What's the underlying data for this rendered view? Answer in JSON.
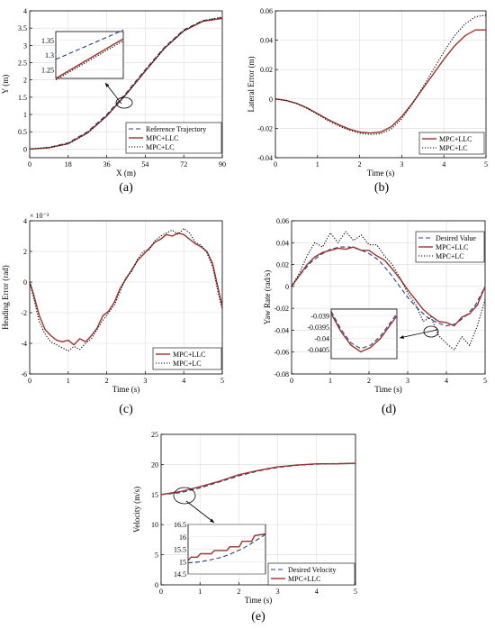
{
  "colors": {
    "reference": "#1f3f8f",
    "mpc_llc": "#a0302a",
    "mpc_lc": "#000000",
    "axis": "#000000"
  },
  "chart_data": [
    {
      "id": "a",
      "panel_label": "(a)",
      "type": "line",
      "xlabel": "X (m)",
      "ylabel": "Y (m)",
      "xlim": [
        0,
        90
      ],
      "ylim": [
        -0.25,
        4
      ],
      "xticks": [
        0,
        18,
        36,
        54,
        72,
        90
      ],
      "yticks": [
        0,
        0.5,
        1,
        1.5,
        2,
        2.5,
        3,
        3.5,
        4
      ],
      "ytick_labels": [
        "0",
        "0.5",
        "1",
        "1.5",
        "2",
        "2.5",
        "3",
        "3.5",
        "4"
      ],
      "grid": true,
      "legend_position": "bottom-right",
      "series": [
        {
          "name": "Reference Trajectory",
          "style": "dashed",
          "color": "#1f3f8f",
          "x": [
            0,
            9,
            18,
            27,
            36,
            45,
            54,
            63,
            72,
            81,
            90
          ],
          "y": [
            0,
            0.05,
            0.18,
            0.5,
            1.0,
            1.62,
            2.3,
            2.95,
            3.45,
            3.72,
            3.8
          ]
        },
        {
          "name": "MPC+LLC",
          "style": "solid",
          "color": "#a0302a",
          "x": [
            0,
            9,
            18,
            27,
            36,
            45,
            54,
            63,
            72,
            81,
            90
          ],
          "y": [
            0,
            0.04,
            0.16,
            0.47,
            0.96,
            1.58,
            2.26,
            2.92,
            3.42,
            3.7,
            3.78
          ]
        },
        {
          "name": "MPC+LC",
          "style": "dotted",
          "color": "#000000",
          "x": [
            0,
            9,
            18,
            27,
            36,
            45,
            54,
            63,
            72,
            81,
            90
          ],
          "y": [
            0,
            0.04,
            0.15,
            0.46,
            0.95,
            1.57,
            2.25,
            2.91,
            3.42,
            3.71,
            3.82
          ]
        }
      ],
      "inset": {
        "yticks": [
          1.25,
          1.3,
          1.35
        ],
        "ytick_labels": [
          "1.25",
          "1.3",
          "1.35"
        ],
        "ylim": [
          1.22,
          1.38
        ],
        "series": [
          {
            "style": "dashed",
            "color": "#1f3f8f",
            "x": [
              0,
              1
            ],
            "y": [
              1.285,
              1.385
            ]
          },
          {
            "style": "solid",
            "color": "#a0302a",
            "x": [
              0,
              1
            ],
            "y": [
              1.22,
              1.355
            ]
          },
          {
            "style": "dotted",
            "color": "#000000",
            "x": [
              0,
              1
            ],
            "y": [
              1.215,
              1.348
            ]
          }
        ]
      }
    },
    {
      "id": "b",
      "panel_label": "(b)",
      "type": "line",
      "xlabel": "Time (s)",
      "ylabel": "Lateral Error (m)",
      "xlim": [
        0,
        5
      ],
      "ylim": [
        -0.04,
        0.06
      ],
      "xticks": [
        0,
        1,
        2,
        3,
        4,
        5
      ],
      "yticks": [
        -0.04,
        -0.02,
        0,
        0.02,
        0.04,
        0.06
      ],
      "ytick_labels": [
        "-0.04",
        "-0.02",
        "0",
        "0.02",
        "0.04",
        "0.06"
      ],
      "grid": true,
      "legend_position": "bottom-right",
      "series": [
        {
          "name": "MPC+LLC",
          "style": "solid",
          "color": "#a0302a",
          "x": [
            0,
            0.25,
            0.5,
            0.75,
            1,
            1.25,
            1.5,
            1.75,
            2,
            2.25,
            2.5,
            2.75,
            3,
            3.25,
            3.5,
            3.75,
            4,
            4.25,
            4.5,
            4.75,
            5
          ],
          "y": [
            0,
            -0.001,
            -0.003,
            -0.006,
            -0.01,
            -0.014,
            -0.0175,
            -0.0205,
            -0.0225,
            -0.0232,
            -0.0225,
            -0.019,
            -0.012,
            -0.003,
            0.007,
            0.017,
            0.027,
            0.036,
            0.043,
            0.047,
            0.047
          ]
        },
        {
          "name": "MPC+LC",
          "style": "dotted",
          "color": "#000000",
          "x": [
            0,
            0.25,
            0.5,
            0.75,
            1,
            1.25,
            1.5,
            1.75,
            2,
            2.25,
            2.5,
            2.75,
            3,
            3.25,
            3.5,
            3.75,
            4,
            4.25,
            4.5,
            4.75,
            5
          ],
          "y": [
            0,
            -0.001,
            -0.003,
            -0.0065,
            -0.0105,
            -0.0148,
            -0.0183,
            -0.0213,
            -0.0233,
            -0.0242,
            -0.0237,
            -0.0205,
            -0.0135,
            -0.0035,
            0.008,
            0.02,
            0.032,
            0.043,
            0.051,
            0.056,
            0.057
          ]
        }
      ]
    },
    {
      "id": "c",
      "panel_label": "(c)",
      "type": "line",
      "xlabel": "Time (s)",
      "ylabel": "Heading Error (rad)",
      "exponent_label": "× 10⁻³",
      "xlim": [
        0,
        5
      ],
      "ylim": [
        -6,
        4
      ],
      "xticks": [
        0,
        1,
        2,
        3,
        4,
        5
      ],
      "yticks": [
        -6,
        -4,
        -2,
        0,
        2,
        4
      ],
      "ytick_labels": [
        "-6",
        "-4",
        "-2",
        "0",
        "2",
        "4"
      ],
      "grid": true,
      "legend_position": "bottom-right",
      "series": [
        {
          "name": "MPC+LLC",
          "style": "solid",
          "color": "#a0302a",
          "x": [
            0,
            0.1,
            0.25,
            0.4,
            0.55,
            0.7,
            0.85,
            1,
            1.15,
            1.3,
            1.45,
            1.6,
            1.75,
            1.9,
            2.05,
            2.2,
            2.35,
            2.5,
            2.65,
            2.8,
            2.95,
            3.1,
            3.25,
            3.4,
            3.55,
            3.7,
            3.85,
            4,
            4.15,
            4.3,
            4.45,
            4.6,
            4.75,
            4.9,
            5
          ],
          "y": [
            0,
            -0.8,
            -2.2,
            -3.1,
            -3.5,
            -3.8,
            -3.9,
            -3.8,
            -4.1,
            -3.7,
            -3.9,
            -3.5,
            -3.0,
            -2.2,
            -1.9,
            -1.3,
            -0.4,
            0.2,
            0.8,
            1.4,
            1.8,
            2.2,
            2.6,
            2.8,
            3.1,
            3.0,
            3.2,
            3.1,
            2.8,
            2.5,
            2.3,
            2.0,
            1.2,
            -0.5,
            -1.6
          ]
        },
        {
          "name": "MPC+LC",
          "style": "dotted",
          "color": "#000000",
          "x": [
            0,
            0.1,
            0.25,
            0.4,
            0.55,
            0.7,
            0.85,
            1,
            1.15,
            1.3,
            1.45,
            1.6,
            1.75,
            1.9,
            2.05,
            2.2,
            2.35,
            2.5,
            2.65,
            2.8,
            2.95,
            3.1,
            3.25,
            3.4,
            3.55,
            3.7,
            3.85,
            4,
            4.15,
            4.3,
            4.45,
            4.6,
            4.75,
            4.9,
            5
          ],
          "y": [
            0,
            -1.0,
            -2.6,
            -3.4,
            -3.9,
            -4.1,
            -4.3,
            -4.5,
            -4.2,
            -4.4,
            -4.0,
            -3.7,
            -3.1,
            -2.5,
            -2.0,
            -1.5,
            -0.6,
            0.3,
            0.7,
            1.5,
            2.0,
            2.1,
            2.7,
            3.0,
            3.2,
            3.4,
            3.1,
            3.5,
            3.2,
            2.6,
            2.4,
            1.9,
            1.0,
            -0.8,
            -1.8
          ]
        }
      ]
    },
    {
      "id": "d",
      "panel_label": "(d)",
      "type": "line",
      "xlabel": "Time (s)",
      "ylabel": "Yaw Rate (rad/s)",
      "xlim": [
        0,
        5
      ],
      "ylim": [
        -0.08,
        0.06
      ],
      "xticks": [
        0,
        1,
        2,
        3,
        4,
        5
      ],
      "yticks": [
        -0.08,
        -0.06,
        -0.04,
        -0.02,
        0,
        0.02,
        0.04,
        0.06
      ],
      "ytick_labels": [
        "-0.08",
        "-0.06",
        "-0.04",
        "-0.02",
        "0",
        "0.02",
        "0.04",
        "0.06"
      ],
      "grid": true,
      "legend_position": "top-right",
      "series": [
        {
          "name": "Desired Value",
          "style": "dashed",
          "color": "#1f3f8f",
          "x": [
            0,
            0.25,
            0.5,
            0.75,
            1,
            1.25,
            1.5,
            1.75,
            2,
            2.25,
            2.5,
            2.75,
            3,
            3.25,
            3.5,
            3.75,
            4,
            4.25,
            4.5,
            4.75,
            5
          ],
          "y": [
            0,
            0.012,
            0.022,
            0.029,
            0.034,
            0.036,
            0.036,
            0.034,
            0.03,
            0.024,
            0.014,
            0.002,
            -0.01,
            -0.02,
            -0.028,
            -0.033,
            -0.036,
            -0.034,
            -0.027,
            -0.017,
            0
          ]
        },
        {
          "name": "MPC+LLC",
          "style": "solid",
          "color": "#a0302a",
          "x": [
            0,
            0.2,
            0.4,
            0.6,
            0.8,
            1,
            1.2,
            1.4,
            1.6,
            1.8,
            2,
            2.2,
            2.4,
            2.6,
            2.8,
            3,
            3.2,
            3.4,
            3.6,
            3.8,
            4,
            4.2,
            4.4,
            4.6,
            4.8,
            5
          ],
          "y": [
            0,
            0.01,
            0.02,
            0.027,
            0.031,
            0.033,
            0.035,
            0.034,
            0.036,
            0.033,
            0.033,
            0.028,
            0.024,
            0.016,
            0.007,
            -0.003,
            -0.012,
            -0.021,
            -0.027,
            -0.032,
            -0.033,
            -0.036,
            -0.028,
            -0.025,
            -0.017,
            0
          ]
        },
        {
          "name": "MPC+LC",
          "style": "dotted",
          "color": "#000000",
          "x": [
            0,
            0.2,
            0.4,
            0.6,
            0.8,
            1,
            1.2,
            1.4,
            1.6,
            1.8,
            2,
            2.2,
            2.4,
            2.6,
            2.8,
            3,
            3.2,
            3.4,
            3.6,
            3.8,
            4,
            4.2,
            4.4,
            4.6,
            4.8,
            5
          ],
          "y": [
            0,
            0.012,
            0.028,
            0.04,
            0.036,
            0.049,
            0.04,
            0.05,
            0.042,
            0.047,
            0.038,
            0.038,
            0.028,
            0.02,
            0.008,
            -0.006,
            -0.016,
            -0.032,
            -0.028,
            -0.045,
            -0.052,
            -0.058,
            -0.046,
            -0.054,
            -0.036,
            -0.012
          ]
        }
      ],
      "inset": {
        "yticks": [
          -0.039,
          -0.0395,
          -0.04,
          -0.0405
        ],
        "ytick_labels": [
          "-0.039",
          "-0.0395",
          "-0.04",
          "-0.0405"
        ],
        "ylim": [
          -0.0409,
          -0.0387
        ],
        "series": [
          {
            "style": "dashed",
            "color": "#1f3f8f",
            "x": [
              0,
              0.15,
              0.3,
              0.45,
              0.6,
              0.75,
              0.9,
              1
            ],
            "y": [
              -0.0388,
              -0.0396,
              -0.0402,
              -0.04045,
              -0.0403,
              -0.0399,
              -0.0393,
              -0.0389
            ]
          },
          {
            "style": "solid",
            "color": "#a0302a",
            "x": [
              0,
              0.15,
              0.3,
              0.45,
              0.6,
              0.75,
              0.9,
              1
            ],
            "y": [
              -0.0389,
              -0.0397,
              -0.0403,
              -0.0406,
              -0.0404,
              -0.04,
              -0.0394,
              -0.039
            ]
          }
        ]
      }
    },
    {
      "id": "e",
      "panel_label": "(e)",
      "type": "line",
      "xlabel": "Time (s)",
      "ylabel": "Velocity (m/s)",
      "xlim": [
        0,
        5
      ],
      "ylim": [
        0,
        25
      ],
      "xticks": [
        0,
        1,
        2,
        3,
        4,
        5
      ],
      "yticks": [
        0,
        5,
        10,
        15,
        20,
        25
      ],
      "ytick_labels": [
        "0",
        "5",
        "10",
        "15",
        "20",
        "25"
      ],
      "grid": true,
      "legend_position": "bottom-right",
      "series": [
        {
          "name": "Desired Velocity",
          "style": "dashed",
          "color": "#1f3f8f",
          "x": [
            0,
            0.5,
            1,
            1.5,
            2,
            2.5,
            3,
            3.5,
            4,
            4.5,
            5
          ],
          "y": [
            15.0,
            15.3,
            16.1,
            17.1,
            18.1,
            18.9,
            19.5,
            19.85,
            20.05,
            20.15,
            20.2
          ]
        },
        {
          "name": "MPC+LLC",
          "style": "solid",
          "color": "#a0302a",
          "x": [
            0,
            0.5,
            1,
            1.5,
            2,
            2.5,
            3,
            3.5,
            4,
            4.5,
            5
          ],
          "y": [
            15.0,
            15.5,
            16.3,
            17.2,
            18.3,
            19.0,
            19.6,
            19.9,
            20.1,
            20.1,
            20.2
          ]
        }
      ],
      "inset": {
        "yticks": [
          14.5,
          15,
          15.5,
          16,
          16.5
        ],
        "ytick_labels": [
          "14.5",
          "15",
          "15.5",
          "16",
          "16.5"
        ],
        "ylim": [
          14.5,
          16.5
        ],
        "series": [
          {
            "style": "dashed",
            "color": "#1f3f8f",
            "x": [
              0,
              0.1,
              0.2,
              0.3,
              0.4,
              0.5,
              0.6,
              0.7,
              0.8,
              0.9,
              1
            ],
            "y": [
              14.95,
              14.97,
              15.02,
              15.08,
              15.15,
              15.25,
              15.38,
              15.52,
              15.7,
              15.9,
              16.1
            ]
          },
          {
            "style": "solid",
            "color": "#a0302a",
            "x": [
              0,
              0.04,
              0.12,
              0.16,
              0.3,
              0.34,
              0.5,
              0.54,
              0.66,
              0.7,
              0.82,
              0.86,
              0.96,
              1
            ],
            "y": [
              15.05,
              15.18,
              15.18,
              15.32,
              15.32,
              15.45,
              15.45,
              15.6,
              15.6,
              15.82,
              15.82,
              16.05,
              16.1,
              16.12
            ]
          }
        ]
      }
    }
  ]
}
